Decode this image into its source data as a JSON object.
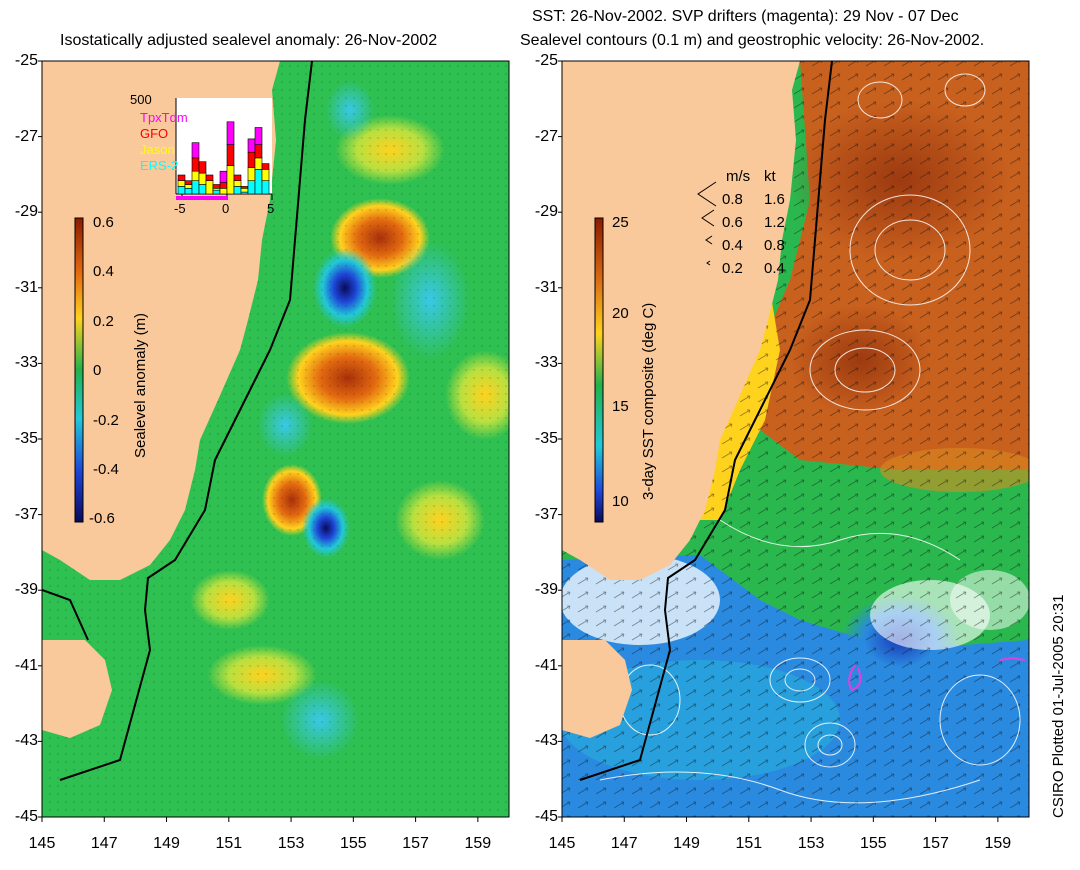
{
  "left_panel": {
    "title": "Isostatically adjusted sealevel anomaly: 26-Nov-2002",
    "colorbar_label": "Sealevel anomaly (m)",
    "colorbar_ticks": [
      "0.6",
      "0.4",
      "0.2",
      "0",
      "-0.2",
      "-0.4",
      "-0.6"
    ],
    "histogram": {
      "y_max_label": "500",
      "legend": [
        {
          "name": "TpxTdm",
          "color": "#ff00ff"
        },
        {
          "name": "GFO",
          "color": "#ff0000"
        },
        {
          "name": "Jason",
          "color": "#ffff00"
        },
        {
          "name": "ERS-2",
          "color": "#00ffff"
        }
      ],
      "x_ticks": [
        "-5",
        "0",
        "5"
      ]
    }
  },
  "right_panel": {
    "title_line1": "SST: 26-Nov-2002. SVP drifters (magenta): 29 Nov - 07 Dec",
    "title_line2": "Sealevel contours (0.1 m) and geostrophic velocity: 26-Nov-2002.",
    "colorbar_label": "3-day SST composite (deg C)",
    "colorbar_ticks": [
      "25",
      "20",
      "15",
      "10"
    ],
    "velocity_legend": {
      "header_ms": "m/s",
      "header_kt": "kt",
      "rows": [
        {
          "ms": "0.8",
          "kt": "1.6"
        },
        {
          "ms": "0.6",
          "kt": "1.2"
        },
        {
          "ms": "0.4",
          "kt": "0.8"
        },
        {
          "ms": "0.2",
          "kt": "0.4"
        }
      ]
    }
  },
  "axes": {
    "lat_ticks": [
      "-25",
      "-27",
      "-29",
      "-31",
      "-33",
      "-35",
      "-37",
      "-39",
      "-41",
      "-43",
      "-45"
    ],
    "lon_ticks": [
      "145",
      "147",
      "149",
      "151",
      "153",
      "155",
      "157",
      "159"
    ]
  },
  "footer": "CSIRO Plotted 01-Jul-2005 20:31",
  "colors": {
    "land": "#f9c99b",
    "ocean_green": "#22b14c",
    "sst_warm": "#b8501e"
  }
}
